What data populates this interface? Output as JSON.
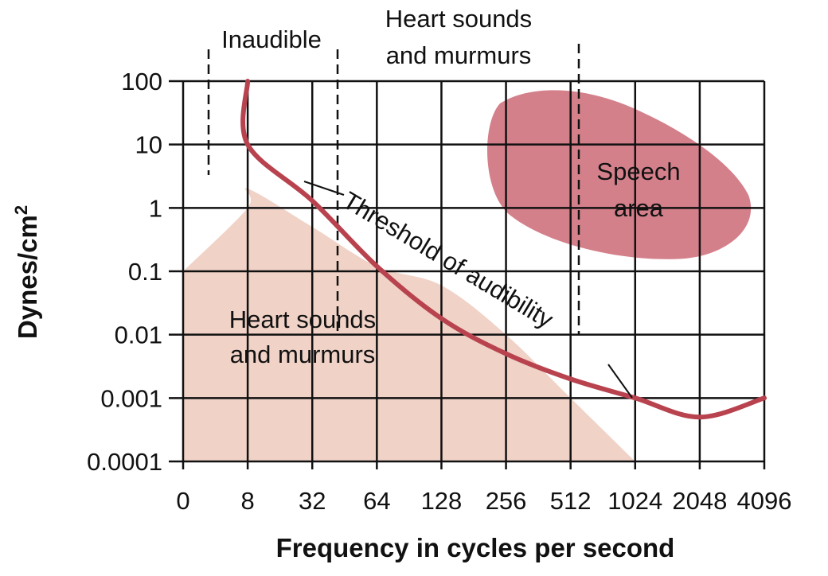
{
  "chart_data": {
    "type": "area",
    "ylabel": "Dynes/cm",
    "ylabel_superscript": "2",
    "xlabel": "Frequency in cycles per second",
    "x_tick_labels": [
      "0",
      "8",
      "32",
      "64",
      "128",
      "256",
      "512",
      "1024",
      "2048",
      "4096"
    ],
    "y_tick_labels": [
      "100",
      "10",
      "1",
      "0.1",
      "0.01",
      "0.001",
      "0.0001"
    ],
    "y_scale": "log",
    "ylim": [
      0.0001,
      100
    ],
    "grid": true,
    "colors": {
      "threshold_curve": "#b8434f",
      "heart_region": "#f0d2c7",
      "speech_region": "#d4808b",
      "grid": "#111111"
    },
    "series": [
      {
        "name": "Threshold of audibility",
        "kind": "line",
        "points": [
          {
            "x": "8",
            "y": 100
          },
          {
            "x": "16",
            "y": 10
          },
          {
            "x": "32",
            "y": 1.3
          },
          {
            "x": "64",
            "y": 0.12
          },
          {
            "x": "128",
            "y": 0.018
          },
          {
            "x": "256",
            "y": 0.005
          },
          {
            "x": "512",
            "y": 0.002
          },
          {
            "x": "1024",
            "y": 0.001
          },
          {
            "x": "2048",
            "y": 0.0005
          },
          {
            "x": "4096",
            "y": 0.001
          }
        ]
      },
      {
        "name": "Heart sounds and murmurs",
        "kind": "area",
        "points": [
          {
            "x": "0",
            "y": 0.1
          },
          {
            "x": "8",
            "y": 1
          },
          {
            "x": "16",
            "y": 2
          },
          {
            "x": "32",
            "y": 0.5
          },
          {
            "x": "64",
            "y": 0.12
          },
          {
            "x": "128",
            "y": 0.06
          },
          {
            "x": "256",
            "y": 0.01
          },
          {
            "x": "512",
            "y": 0.001
          },
          {
            "x": "1024",
            "y": 0.0001
          }
        ]
      },
      {
        "name": "Speech area",
        "kind": "region",
        "x_range": [
          "256",
          "4096"
        ],
        "y_range": [
          0.1,
          80
        ]
      }
    ],
    "annotations": {
      "inaudible": "Inaudible",
      "heart_top_line1": "Heart sounds",
      "heart_top_line2": "and murmurs",
      "heart_area_line1": "Heart sounds",
      "heart_area_line2": "and murmurs",
      "speech_line1": "Speech",
      "speech_line2": "area",
      "threshold": "Threshold of audibility"
    }
  }
}
